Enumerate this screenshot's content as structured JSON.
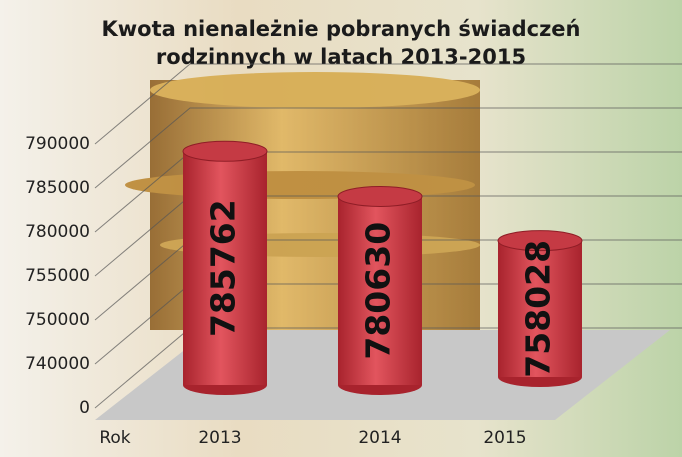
{
  "chart_data": {
    "type": "bar",
    "title": "Kwota nienależnie pobranych świadczeń",
    "subtitle": "rodzinnych w latach 2013-2015",
    "x_label": "Rok",
    "categories": [
      "2013",
      "2014",
      "2015"
    ],
    "values": [
      785762,
      780630,
      758028
    ],
    "color": "#d6434d",
    "yticks": [
      0,
      740000,
      750000,
      755000,
      780000,
      785000,
      790000
    ],
    "grid": true
  }
}
